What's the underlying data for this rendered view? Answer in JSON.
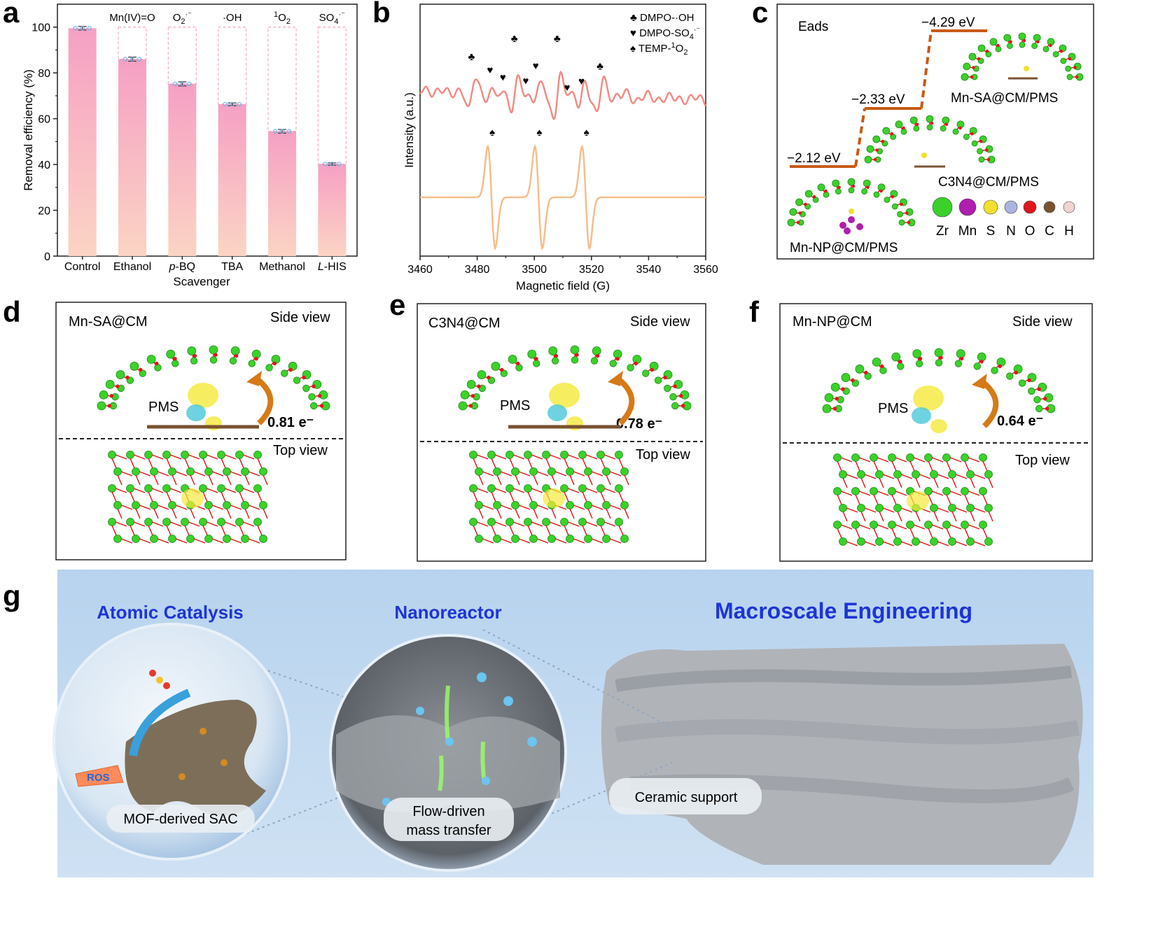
{
  "panels": {
    "a": "a",
    "b": "b",
    "c": "c",
    "d": "d",
    "e": "e",
    "f": "f",
    "g": "g"
  },
  "chart_data": [
    {
      "type": "bar",
      "panel": "a",
      "categories": [
        "Control",
        "Ethanol",
        "p-BQ",
        "TBA",
        "Methanol",
        "L-HIS"
      ],
      "values": [
        99.5,
        86.0,
        75.2,
        66.3,
        54.5,
        40.2
      ],
      "errors": [
        0.8,
        0.9,
        0.9,
        0.6,
        0.8,
        0.5
      ],
      "species": [
        "",
        "Mn(IV)=O",
        "O2·⁻",
        "·OH",
        "1O2",
        "SO4·⁻"
      ],
      "xlabel": "Scavenger",
      "ylabel": "Removal efficiency (%)",
      "ylim": [
        0,
        110
      ],
      "yticks": [
        0,
        20,
        40,
        60,
        80,
        100
      ]
    },
    {
      "type": "line",
      "panel": "b",
      "xlabel": "Magnetic field (G)",
      "ylabel": "Intensity (a.u.)",
      "xlim": [
        3460,
        3560
      ],
      "xticks": [
        3460,
        3480,
        3500,
        3520,
        3540,
        3560
      ],
      "series": [
        {
          "name": "DMPO-·OH / DMPO-SO4·⁻",
          "color": "#f08c86"
        },
        {
          "name": "TEMP-1O2",
          "color": "#f5be8c",
          "peaks": [
            3485,
            3501.5,
            3518
          ]
        }
      ],
      "legend": [
        {
          "symbol": "♣",
          "label": "DMPO-·OH"
        },
        {
          "symbol": "♥",
          "label": "DMPO-SO4·⁻"
        },
        {
          "symbol": "♠",
          "label": "TEMP-1O2"
        }
      ]
    }
  ],
  "panel_c": {
    "title": "Eads",
    "levels": [
      {
        "value": "−2.12 eV",
        "structure": "Mn-NP@CM/PMS"
      },
      {
        "value": "−2.33 eV",
        "structure": "C3N4@CM/PMS"
      },
      {
        "value": "−4.29 eV",
        "structure": "Mn-SA@CM/PMS"
      }
    ],
    "elements": [
      {
        "symbol": "Zr",
        "color": "#39d12a"
      },
      {
        "symbol": "Mn",
        "color": "#b01db0"
      },
      {
        "symbol": "S",
        "color": "#f2e02a"
      },
      {
        "symbol": "N",
        "color": "#aab4e0"
      },
      {
        "symbol": "O",
        "color": "#e0161b"
      },
      {
        "symbol": "C",
        "color": "#7a5230"
      },
      {
        "symbol": "H",
        "color": "#f0d4d0"
      }
    ]
  },
  "panel_d": {
    "title": "Mn-SA@CM",
    "side": "Side view",
    "top": "Top view",
    "pms": "PMS",
    "charge": "0.81 e⁻"
  },
  "panel_e": {
    "title": "C3N4@CM",
    "side": "Side view",
    "top": "Top view",
    "pms": "PMS",
    "charge": "0.78 e⁻"
  },
  "panel_f": {
    "title": "Mn-NP@CM",
    "side": "Side view",
    "top": "Top view",
    "pms": "PMS",
    "charge": "0.64 e⁻"
  },
  "panel_g": {
    "heading1": "Atomic Catalysis",
    "heading2": "Nanoreactor",
    "heading3": "Macroscale Engineering",
    "label1": "MOF-derived SAC",
    "label2a": "Flow-driven",
    "label2b": "mass transfer",
    "label3": "Ceramic support",
    "ros": "ROS"
  }
}
